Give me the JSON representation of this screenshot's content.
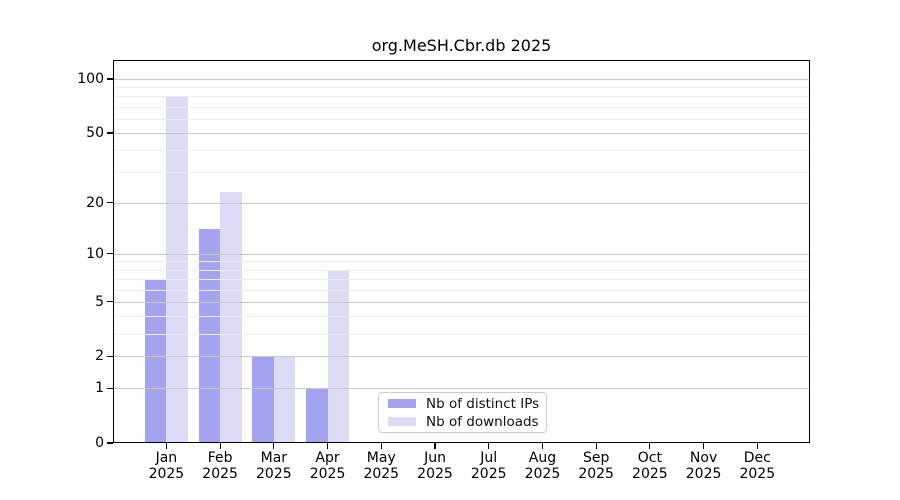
{
  "title": "org.MeSH.Cbr.db 2025",
  "chart_data": {
    "type": "bar",
    "title": "org.MeSH.Cbr.db 2025",
    "categories": [
      "Jan",
      "Feb",
      "Mar",
      "Apr",
      "May",
      "Jun",
      "Jul",
      "Aug",
      "Sep",
      "Oct",
      "Nov",
      "Dec"
    ],
    "year_label": "2025",
    "series": [
      {
        "name": "Nb of distinct IPs",
        "color": "#a4a4ee",
        "values": [
          7,
          14,
          2,
          1,
          0,
          0,
          0,
          0,
          0,
          0,
          0,
          0
        ]
      },
      {
        "name": "Nb of downloads",
        "color": "#dcdcf7",
        "values": [
          80,
          23,
          2,
          8,
          0,
          0,
          0,
          0,
          0,
          0,
          0,
          0
        ]
      }
    ],
    "yscale": "log1p",
    "ylim": [
      0,
      127.6
    ],
    "yticks": [
      0,
      1,
      2,
      5,
      10,
      20,
      50,
      100
    ],
    "minor_yticks": [
      3,
      4,
      6,
      7,
      8,
      9,
      30,
      40,
      60,
      70,
      80,
      90
    ],
    "grid": true,
    "legend_position": "inside lower-center-left",
    "xlabel": "",
    "ylabel": ""
  },
  "colors": {
    "major_grid": "#c9c9c9",
    "minor_grid": "#ececec",
    "axis": "#000000",
    "background": "#ffffff"
  }
}
